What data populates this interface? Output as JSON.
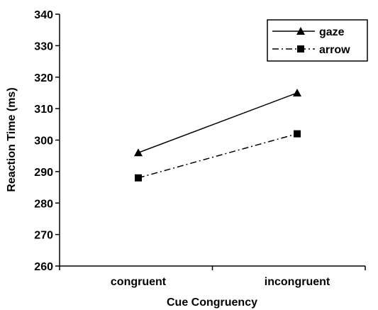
{
  "chart_data": {
    "type": "line",
    "title": "",
    "xlabel": "Cue Congruency",
    "ylabel": "Reaction Time (ms)",
    "categories": [
      "congruent",
      "incongruent"
    ],
    "ylim": [
      260,
      340
    ],
    "yticks": [
      260,
      270,
      280,
      290,
      300,
      310,
      320,
      330,
      340
    ],
    "grid": false,
    "legend": "top-right",
    "series": [
      {
        "name": "gaze",
        "values": [
          296,
          315
        ],
        "marker": "triangle",
        "line": "solid",
        "color": "#000000"
      },
      {
        "name": "arrow",
        "values": [
          288,
          302
        ],
        "marker": "square",
        "line": "dash-dot",
        "color": "#000000"
      }
    ]
  }
}
